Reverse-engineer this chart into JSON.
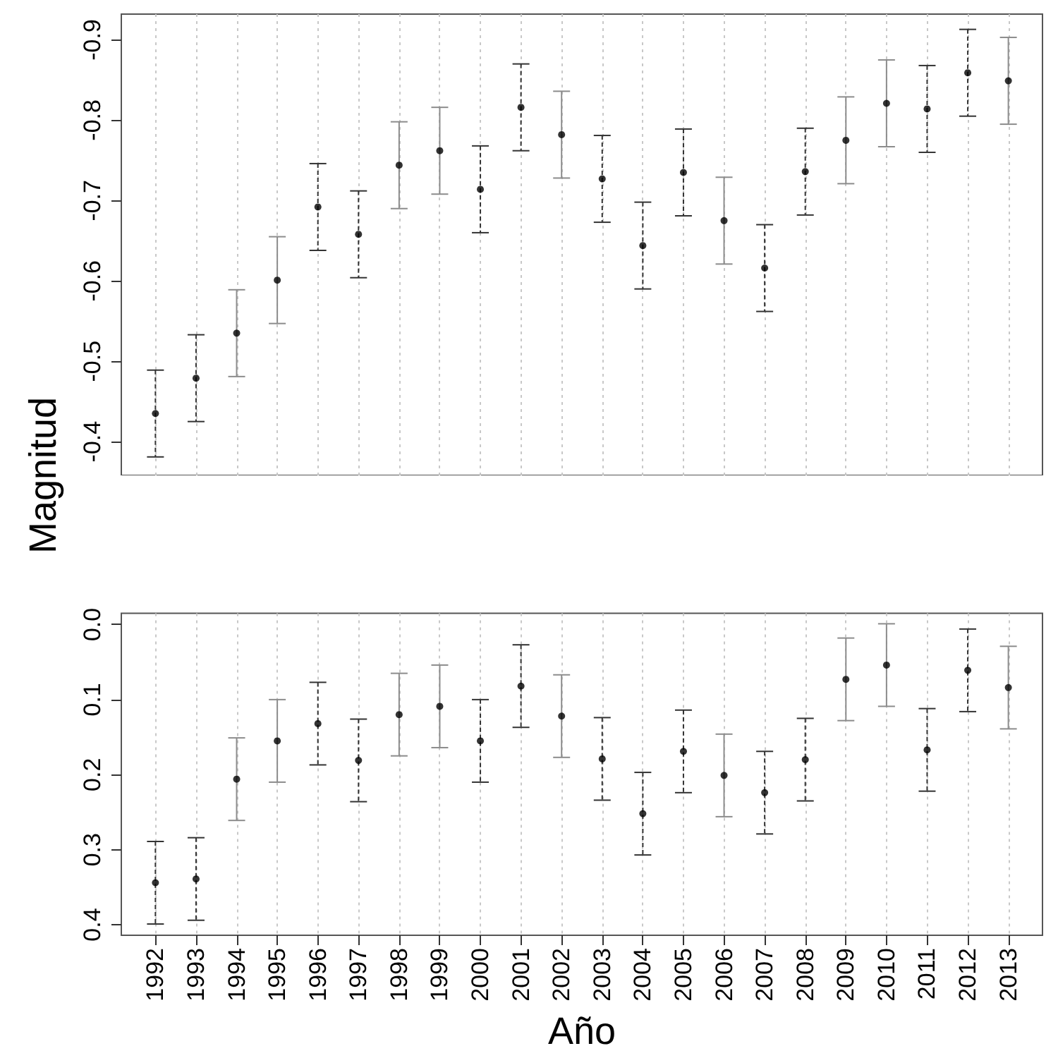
{
  "chart_data": [
    {
      "type": "scatter",
      "ylabel": "Magnitud",
      "xlim": [
        1991.16,
        2013.84
      ],
      "xticks": [
        1992,
        1993,
        1994,
        1995,
        1996,
        1997,
        1998,
        1999,
        2000,
        2001,
        2002,
        2003,
        2004,
        2005,
        2006,
        2007,
        2008,
        2009,
        2010,
        2011,
        2012,
        2013
      ],
      "ylim": [
        -0.358,
        -0.932
      ],
      "yticks": [
        -0.4,
        -0.5,
        -0.6,
        -0.7,
        -0.8,
        -0.9
      ],
      "grid": "x",
      "tick_labels": "y",
      "marker": "circle",
      "series": [
        {
          "color": "#000000",
          "line_style": "dashed",
          "x": [
            1992,
            1993,
            1996,
            1997,
            2000,
            2001,
            2003,
            2004,
            2005,
            2007,
            2008,
            2011,
            2012
          ],
          "values": [
            -0.435,
            -0.479,
            -0.692,
            -0.658,
            -0.714,
            -0.816,
            -0.727,
            -0.644,
            -0.735,
            -0.616,
            -0.736,
            -0.814,
            -0.859
          ],
          "errors": [
            0.054,
            0.054,
            0.054,
            0.054,
            0.054,
            0.054,
            0.054,
            0.054,
            0.054,
            0.054,
            0.054,
            0.054,
            0.054
          ]
        },
        {
          "color": "#000000",
          "line_style": "solid",
          "x": [
            1994,
            1995,
            1998,
            1999,
            2002,
            2006,
            2009,
            2010,
            2013
          ],
          "values": [
            -0.535,
            -0.601,
            -0.744,
            -0.762,
            -0.782,
            -0.675,
            -0.775,
            -0.821,
            -0.849
          ],
          "errors": [
            0.054,
            0.054,
            0.054,
            0.054,
            0.054,
            0.054,
            0.054,
            0.054,
            0.054
          ]
        }
      ]
    },
    {
      "type": "scatter",
      "xlabel": "Año",
      "xlim": [
        1991.16,
        2013.84
      ],
      "xticks": [
        1992,
        1993,
        1994,
        1995,
        1996,
        1997,
        1998,
        1999,
        2000,
        2001,
        2002,
        2003,
        2004,
        2005,
        2006,
        2007,
        2008,
        2009,
        2010,
        2011,
        2012,
        2013
      ],
      "ylim": [
        0.414,
        -0.015
      ],
      "yticks": [
        {
          "value": 0,
          "label": "0.0"
        },
        0.1,
        0.2,
        0.3,
        0.4
      ],
      "grid": "x",
      "marker": "circle",
      "series": [
        {
          "color": "#000000",
          "line_style": "dashed",
          "x": [
            1992,
            1993,
            1996,
            1997,
            2000,
            2001,
            2003,
            2004,
            2005,
            2007,
            2008,
            2011,
            2012
          ],
          "values": [
            0.344,
            0.339,
            0.132,
            0.181,
            0.155,
            0.082,
            0.179,
            0.252,
            0.169,
            0.224,
            0.18,
            0.167,
            0.061
          ],
          "errors": [
            0.055,
            0.055,
            0.055,
            0.055,
            0.055,
            0.055,
            0.055,
            0.055,
            0.055,
            0.055,
            0.055,
            0.055,
            0.055
          ]
        },
        {
          "color": "#000000",
          "line_style": "solid",
          "x": [
            1994,
            1995,
            1998,
            1999,
            2002,
            2006,
            2009,
            2010,
            2013
          ],
          "values": [
            0.206,
            0.155,
            0.12,
            0.109,
            0.122,
            0.201,
            0.073,
            0.054,
            0.084
          ],
          "errors": [
            0.055,
            0.055,
            0.055,
            0.055,
            0.055,
            0.055,
            0.055,
            0.055,
            0.055
          ]
        }
      ]
    }
  ]
}
